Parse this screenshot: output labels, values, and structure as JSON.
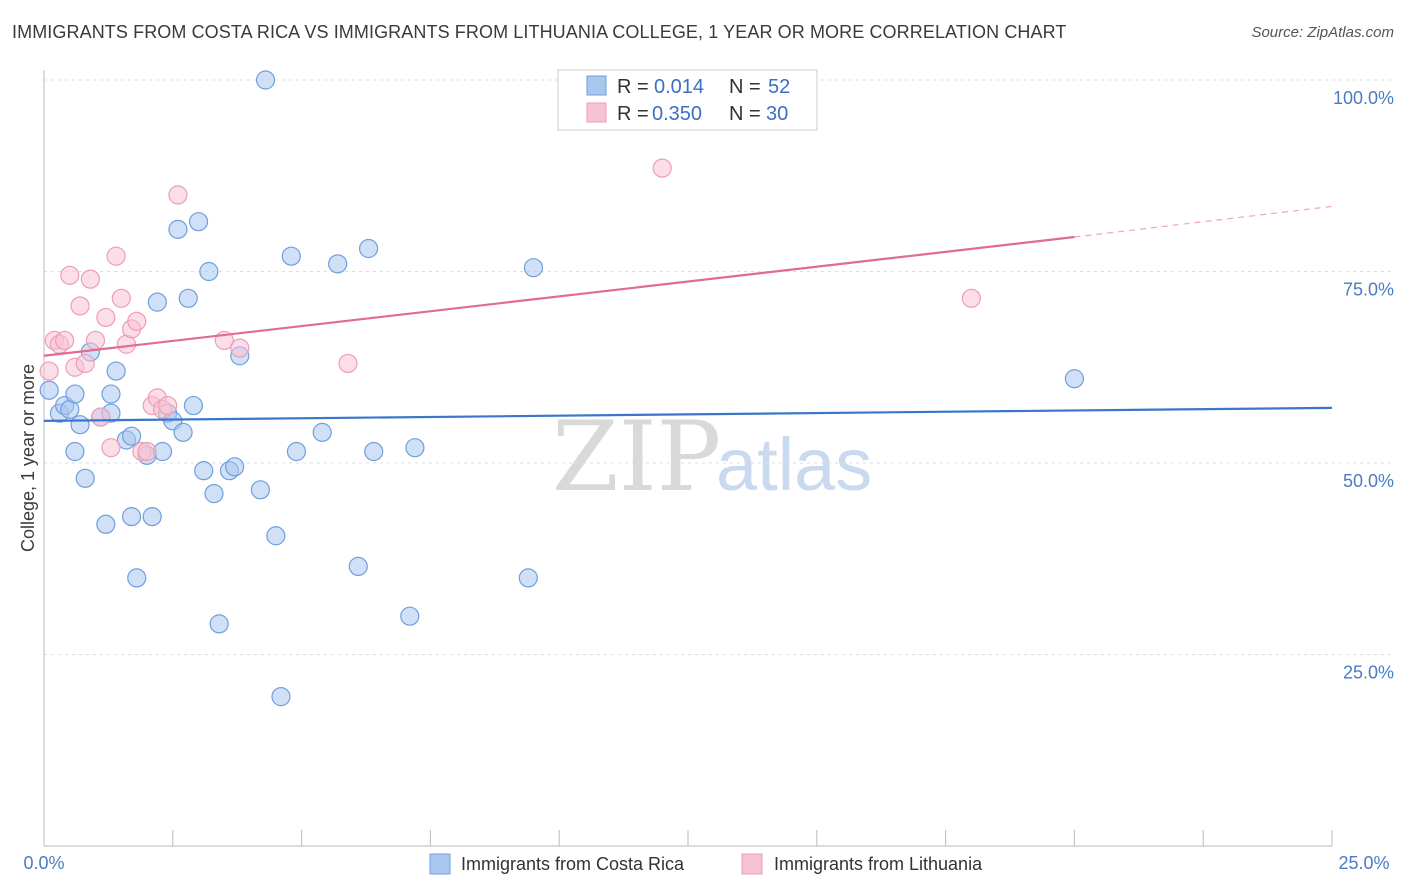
{
  "chart_data": {
    "type": "scatter",
    "title": "IMMIGRANTS FROM COSTA RICA VS IMMIGRANTS FROM LITHUANIA COLLEGE, 1 YEAR OR MORE CORRELATION CHART",
    "source": "Source: ZipAtlas.com",
    "ylabel": "College, 1 year or more",
    "xlabel": "",
    "xlim": [
      0,
      25
    ],
    "ylim": [
      0,
      100
    ],
    "x_tick_labels": [
      "0.0%",
      "25.0%"
    ],
    "y_tick_labels": [
      "25.0%",
      "50.0%",
      "75.0%",
      "100.0%"
    ],
    "y_tick_values": [
      25,
      50,
      75,
      100
    ],
    "watermark": {
      "zip": "ZIP",
      "atlas": "atlas"
    },
    "legend": {
      "r_label": "R =",
      "n_label": "N =",
      "entries": [
        {
          "r": "0.014",
          "n": "52"
        },
        {
          "r": "0.350",
          "n": "30"
        }
      ]
    },
    "series": [
      {
        "name": "Immigrants from Costa Rica",
        "color": "#6f9fdc",
        "fill": "#a9c6ee",
        "line_color": "#3a77cc",
        "trend": {
          "x0": 0,
          "y0": 55.5,
          "x1": 25,
          "y1": 57.2
        },
        "points": [
          [
            0.1,
            59.5
          ],
          [
            0.3,
            56.5
          ],
          [
            0.4,
            57.5
          ],
          [
            0.5,
            57.0
          ],
          [
            0.6,
            59.0
          ],
          [
            0.6,
            51.5
          ],
          [
            0.7,
            55.0
          ],
          [
            0.8,
            48.0
          ],
          [
            0.9,
            64.5
          ],
          [
            1.1,
            56.0
          ],
          [
            1.2,
            42.0
          ],
          [
            1.3,
            56.5
          ],
          [
            1.3,
            59.0
          ],
          [
            1.4,
            62.0
          ],
          [
            1.6,
            53.0
          ],
          [
            1.7,
            53.5
          ],
          [
            1.7,
            43.0
          ],
          [
            1.8,
            35.0
          ],
          [
            2.0,
            51.0
          ],
          [
            2.1,
            43.0
          ],
          [
            2.2,
            71.0
          ],
          [
            2.3,
            51.5
          ],
          [
            2.4,
            56.5
          ],
          [
            2.5,
            55.5
          ],
          [
            2.6,
            80.5
          ],
          [
            2.7,
            54.0
          ],
          [
            2.8,
            71.5
          ],
          [
            2.9,
            57.5
          ],
          [
            3.0,
            81.5
          ],
          [
            3.1,
            49.0
          ],
          [
            3.2,
            75.0
          ],
          [
            3.3,
            46.0
          ],
          [
            3.4,
            29.0
          ],
          [
            3.6,
            49.0
          ],
          [
            3.7,
            49.5
          ],
          [
            3.8,
            64.0
          ],
          [
            4.2,
            46.5
          ],
          [
            4.3,
            100.0
          ],
          [
            4.5,
            40.5
          ],
          [
            4.6,
            19.5
          ],
          [
            4.8,
            77.0
          ],
          [
            4.9,
            51.5
          ],
          [
            5.4,
            54.0
          ],
          [
            5.7,
            76.0
          ],
          [
            6.1,
            36.5
          ],
          [
            6.3,
            78.0
          ],
          [
            6.4,
            51.5
          ],
          [
            7.1,
            30.0
          ],
          [
            7.2,
            52.0
          ],
          [
            9.4,
            35.0
          ],
          [
            9.5,
            75.5
          ],
          [
            20.0,
            61.0
          ]
        ]
      },
      {
        "name": "Immigrants from Lithuania",
        "color": "#ee9db6",
        "fill": "#f7c3d3",
        "line_color": "#e06b93",
        "trend": {
          "x0": 0,
          "y0": 64.0,
          "x1": 20.0,
          "y1": 79.5,
          "x_ext": 25,
          "y_ext": 83.5
        },
        "points": [
          [
            0.1,
            62.0
          ],
          [
            0.2,
            66.0
          ],
          [
            0.3,
            65.5
          ],
          [
            0.4,
            66.0
          ],
          [
            0.5,
            74.5
          ],
          [
            0.6,
            62.5
          ],
          [
            0.7,
            70.5
          ],
          [
            0.8,
            63.0
          ],
          [
            0.9,
            74.0
          ],
          [
            1.0,
            66.0
          ],
          [
            1.1,
            56.0
          ],
          [
            1.2,
            69.0
          ],
          [
            1.3,
            52.0
          ],
          [
            1.4,
            77.0
          ],
          [
            1.5,
            71.5
          ],
          [
            1.6,
            65.5
          ],
          [
            1.7,
            67.5
          ],
          [
            1.8,
            68.5
          ],
          [
            1.9,
            51.5
          ],
          [
            2.0,
            51.5
          ],
          [
            2.1,
            57.5
          ],
          [
            2.2,
            58.5
          ],
          [
            2.3,
            57.0
          ],
          [
            2.4,
            57.5
          ],
          [
            2.6,
            85.0
          ],
          [
            3.5,
            66.0
          ],
          [
            3.8,
            65.0
          ],
          [
            5.9,
            63.0
          ],
          [
            12.0,
            88.5
          ],
          [
            18.0,
            71.5
          ]
        ]
      }
    ]
  }
}
